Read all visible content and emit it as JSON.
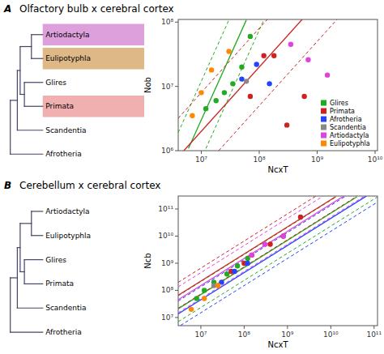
{
  "chart_data": [
    {
      "type": "tree",
      "categories": [
        "Afrotheria",
        "Scandentia",
        "Primata",
        "Glires",
        "Eulipotyphla",
        "Artiodactyla"
      ],
      "colors": [
        null,
        null,
        "#f0b0b0",
        null,
        "#deb887",
        "#dda0dd"
      ]
    },
    {
      "type": "scatter",
      "title": "Olfactory bulb x cerebral cortex",
      "annotations": [
        "A"
      ],
      "x_label": "NcxT",
      "y_label": "Nob",
      "log": true,
      "xlim": [
        4000000.0,
        11000000000.0
      ],
      "ylim": [
        1000000.0,
        110000000.0
      ],
      "xticks": [
        {
          "value": 10000000.0,
          "label": "10⁷"
        },
        {
          "value": 100000000.0,
          "label": "10⁸"
        },
        {
          "value": 1000000000.0,
          "label": "10⁹"
        },
        {
          "value": 10000000000.0,
          "label": "10¹⁰"
        }
      ],
      "yticks": [
        {
          "value": 1000000.0,
          "label": "10⁶"
        },
        {
          "value": 10000000.0,
          "label": "10⁷"
        },
        {
          "value": 100000000.0,
          "label": "10⁸"
        }
      ],
      "legend": "lower right",
      "series": [
        {
          "type": "line",
          "color": "#22aa22",
          "line_style": "solid",
          "x": [
            6000000.0,
            60000000.0
          ],
          "values": [
            1080000.0,
            108000000.0
          ]
        },
        {
          "type": "line",
          "color": "#22aa22",
          "line_style": "dashed",
          "x": [
            4000000.0,
            30000000.0
          ],
          "values": [
            1920000.0,
            108000000.0
          ]
        },
        {
          "type": "line",
          "color": "#22aa22",
          "line_style": "dashed",
          "x": [
            12000000.0,
            120000000.0
          ],
          "values": [
            1080000.0,
            108000000.0
          ]
        },
        {
          "type": "line",
          "color": "#cc2222",
          "line_style": "solid",
          "x": [
            5000000.0,
            550000000.0
          ],
          "values": [
            1000000.0,
            110000000.0
          ]
        },
        {
          "type": "line",
          "color": "#cc2222",
          "line_style": "dashed",
          "x": [
            4000000.0,
            137500000.0
          ],
          "values": [
            3200000.0,
            110000000.0
          ]
        },
        {
          "type": "line",
          "color": "#cc2222",
          "line_style": "dashed",
          "x": [
            20000000.0,
            2200000000.0
          ],
          "values": [
            1000000.0,
            110000000.0
          ]
        },
        {
          "name": "Glires",
          "type": "scatter",
          "color": "#22aa22",
          "x": [
            12000000.0,
            18000000.0,
            25000000.0,
            35000000.0,
            50000000.0,
            70000000.0
          ],
          "values": [
            4500000.0,
            6000000.0,
            8000000.0,
            11000000.0,
            20000000.0,
            60000000.0
          ]
        },
        {
          "name": "Primata",
          "type": "scatter",
          "color": "#cc2222",
          "x": [
            70000000.0,
            120000000.0,
            180000000.0,
            300000000.0,
            600000000.0
          ],
          "values": [
            7000000.0,
            30000000.0,
            30000000.0,
            2500000.0,
            7000000.0
          ]
        },
        {
          "name": "Afrotheria",
          "type": "scatter",
          "color": "#2244ff",
          "x": [
            50000000.0,
            90000000.0,
            150000000.0
          ],
          "values": [
            13000000.0,
            22000000.0,
            11000000.0
          ]
        },
        {
          "name": "Scandentia",
          "type": "scatter",
          "color": "#888888",
          "x": [
            60000000.0
          ],
          "values": [
            12000000.0
          ]
        },
        {
          "name": "Artiodactyla",
          "type": "scatter",
          "color": "#dd44dd",
          "x": [
            350000000.0,
            700000000.0,
            1500000000.0
          ],
          "values": [
            45000000.0,
            26000000.0,
            15000000.0
          ]
        },
        {
          "name": "Eulipotyphla",
          "type": "scatter",
          "color": "#ff8800",
          "x": [
            7000000.0,
            10000000.0,
            15000000.0,
            30000000.0
          ],
          "values": [
            3500000.0,
            8000000.0,
            18000000.0,
            35000000.0
          ]
        }
      ]
    },
    {
      "type": "tree",
      "categories": [
        "Afrotheria",
        "Scandentia",
        "Primata",
        "Glires",
        "Eulipotyphla",
        "Artiodactyla"
      ]
    },
    {
      "type": "scatter",
      "title": "Cerebellum x cerebral cortex",
      "annotations": [
        "B"
      ],
      "x_label": "NcxT",
      "y_label": "Ncb",
      "log": true,
      "xlim": [
        3000000.0,
        120000000000.0
      ],
      "ylim": [
        5000000.0,
        300000000000.0
      ],
      "xticks": [
        {
          "value": 10000000.0,
          "label": "10⁷"
        },
        {
          "value": 100000000.0,
          "label": "10⁸"
        },
        {
          "value": 1000000000.0,
          "label": "10⁹"
        },
        {
          "value": 10000000000.0,
          "label": "10¹⁰"
        },
        {
          "value": 100000000000.0,
          "label": "10¹¹"
        }
      ],
      "yticks": [
        {
          "value": 10000000.0,
          "label": "10⁷"
        },
        {
          "value": 100000000.0,
          "label": "10⁸"
        },
        {
          "value": 1000000000.0,
          "label": "10⁹"
        },
        {
          "value": 10000000000.0,
          "label": "10¹⁰"
        },
        {
          "value": 100000000000.0,
          "label": "10¹¹"
        }
      ],
      "series": [
        {
          "type": "line",
          "color": "#22aa22",
          "line_style": "solid",
          "x": [
            3000000.0,
            40000000000.0
          ],
          "values": [
            21000000.0,
            280000000000.0
          ]
        },
        {
          "type": "line",
          "color": "#22aa22",
          "line_style": "dashed",
          "x": [
            3000000.0,
            14000000000.0
          ],
          "values": [
            63000000.0,
            294000000000.0
          ]
        },
        {
          "type": "line",
          "color": "#22aa22",
          "line_style": "dashed",
          "x": [
            3000000.0,
            120000000000.0
          ],
          "values": [
            7000000.0,
            280000000000.0
          ]
        },
        {
          "type": "line",
          "color": "#cc2222",
          "line_style": "solid",
          "x": [
            3000000.0,
            13000000000.0
          ],
          "values": [
            66000000.0,
            286000000000.0
          ]
        },
        {
          "type": "line",
          "color": "#cc2222",
          "line_style": "dashed",
          "x": [
            3000000.0,
            4500000000.0
          ],
          "values": [
            198000000.0,
            297000000000.0
          ]
        },
        {
          "type": "line",
          "color": "#cc2222",
          "line_style": "dashed",
          "x": [
            3000000.0,
            39000000000.0
          ],
          "values": [
            22000000.0,
            286000000000.0
          ]
        },
        {
          "type": "line",
          "color": "#dd44dd",
          "line_style": "solid",
          "x": [
            3000000.0,
            20000000000.0
          ],
          "values": [
            45000000.0,
            300000000000.0
          ]
        },
        {
          "type": "line",
          "color": "#dd44dd",
          "line_style": "dashed",
          "x": [
            3000000.0,
            6600000000.0
          ],
          "values": [
            135000000.0,
            297000000000.0
          ]
        },
        {
          "type": "line",
          "color": "#dd44dd",
          "line_style": "dashed",
          "x": [
            3000000.0,
            60000000000.0
          ],
          "values": [
            15000000.0,
            300000000000.0
          ]
        },
        {
          "type": "line",
          "color": "#2244ff",
          "line_style": "solid",
          "x": [
            3000000.0,
            66000000000.0
          ],
          "values": [
            13500000.0,
            297000000000.0
          ]
        },
        {
          "type": "line",
          "color": "#2244ff",
          "line_style": "dashed",
          "x": [
            3000000.0,
            22000000000.0
          ],
          "values": [
            40500000.0,
            297000000000.0
          ]
        },
        {
          "type": "line",
          "color": "#2244ff",
          "line_style": "dashed",
          "x": [
            3400000.0,
            120000000000.0
          ],
          "values": [
            5100000.0,
            180000000000.0
          ]
        },
        {
          "name": "Glires",
          "type": "scatter",
          "color": "#22aa22",
          "x": [
            8000000.0,
            12000000.0,
            20000000.0,
            40000000.0,
            70000000.0,
            120000000.0
          ],
          "values": [
            50000000.0,
            100000000.0,
            200000000.0,
            400000000.0,
            800000000.0,
            1500000000.0
          ]
        },
        {
          "name": "Primata",
          "type": "scatter",
          "color": "#cc2222",
          "x": [
            50000000.0,
            100000000.0,
            150000000.0,
            400000000.0,
            800000000.0,
            2000000000.0
          ],
          "values": [
            500000000.0,
            1000000000.0,
            2000000000.0,
            5000000000.0,
            10000000000.0,
            50000000000.0
          ]
        },
        {
          "name": "Afrotheria",
          "type": "scatter",
          "color": "#2244ff",
          "x": [
            30000000.0,
            60000000.0,
            120000000.0
          ],
          "values": [
            200000000.0,
            500000000.0,
            1000000000.0
          ]
        },
        {
          "name": "Scandentia",
          "type": "scatter",
          "color": "#888888",
          "x": [
            20000000.0
          ],
          "values": [
            150000000.0
          ]
        },
        {
          "name": "Artiodactyla",
          "type": "scatter",
          "color": "#dd44dd",
          "x": [
            150000000.0,
            300000000.0,
            800000000.0
          ],
          "values": [
            2000000000.0,
            5000000000.0,
            10000000000.0
          ]
        },
        {
          "name": "Eulipotyphla",
          "type": "scatter",
          "color": "#ff8800",
          "x": [
            6000000.0,
            12000000.0,
            25000000.0
          ],
          "values": [
            20000000.0,
            50000000.0,
            150000000.0
          ]
        }
      ]
    }
  ]
}
